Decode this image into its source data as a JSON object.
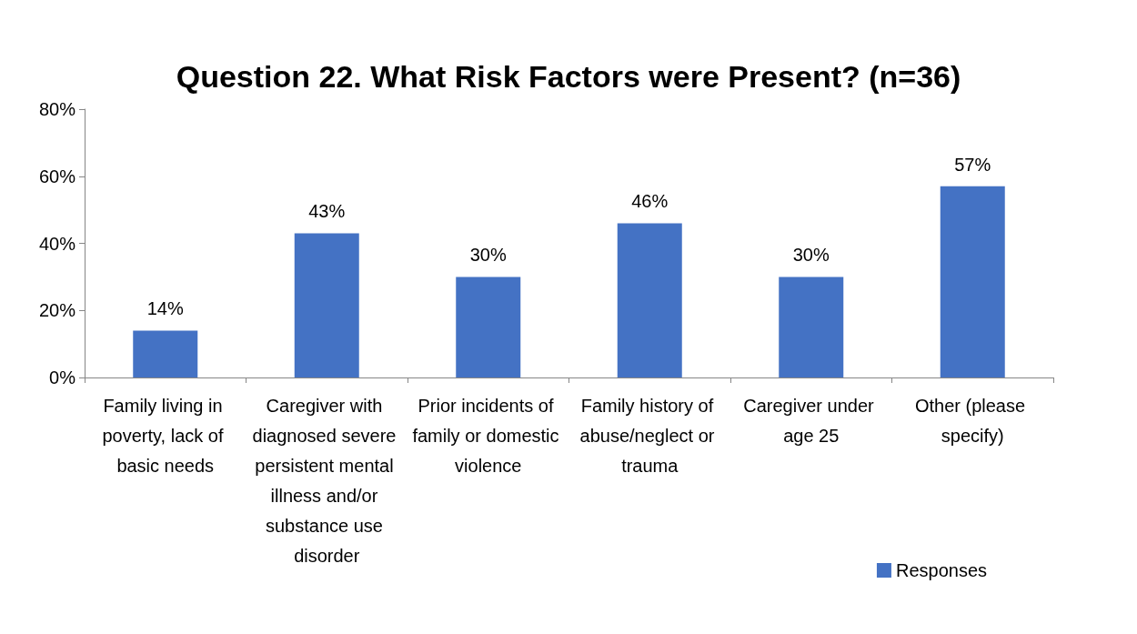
{
  "chart_data": {
    "type": "bar",
    "title": "Question 22. What Risk Factors were Present? (n=36)",
    "categories": [
      "Family living in poverty, lack of basic needs",
      "Caregiver with diagnosed severe persistent mental illness and/or substance use disorder",
      "Prior incidents of family or domestic violence",
      "Family history of abuse/neglect or trauma",
      "Caregiver under age 25",
      "Other (please specify)"
    ],
    "series": [
      {
        "name": "Responses",
        "color": "#4472c4",
        "values": [
          14,
          43,
          30,
          46,
          30,
          57
        ],
        "value_labels": [
          "14%",
          "43%",
          "30%",
          "46%",
          "30%",
          "57%"
        ]
      }
    ],
    "ylim": [
      0,
      80
    ],
    "yticks": [
      {
        "value": 0,
        "label": "0%"
      },
      {
        "value": 20,
        "label": "20%"
      },
      {
        "value": 40,
        "label": "40%"
      },
      {
        "value": 60,
        "label": "60%"
      },
      {
        "value": 80,
        "label": "80%"
      }
    ],
    "grid": false,
    "legend": "bottom right"
  }
}
